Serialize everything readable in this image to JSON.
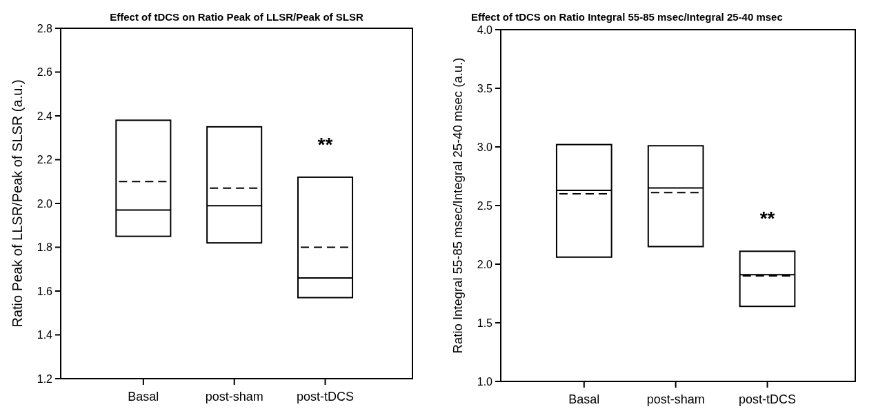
{
  "chart_data": [
    {
      "type": "box",
      "title": "Effect of tDCS on Ratio Peak of LLSR/Peak of SLSR",
      "ylabel": "Ratio Peak of LLSR/Peak of SLSR (a.u.)",
      "categories": [
        "Basal",
        "post-sham",
        "post-tDCS"
      ],
      "ylim": [
        1.2,
        2.8
      ],
      "yticks": [
        1.2,
        1.4,
        1.6,
        1.8,
        {
          "value": 2,
          "label": "2.0"
        },
        2.2,
        2.4,
        2.6,
        2.8
      ],
      "boxes": [
        {
          "low": 1.85,
          "q1": 1.85,
          "median": 1.97,
          "q3": 2.38,
          "high": 2.38,
          "mean": 2.1
        },
        {
          "low": 1.82,
          "q1": 1.82,
          "median": 1.99,
          "q3": 2.35,
          "high": 2.35,
          "mean": 2.07
        },
        {
          "low": 1.57,
          "q1": 1.57,
          "median": 1.66,
          "q3": 2.12,
          "high": 2.12,
          "mean": 1.8
        }
      ],
      "annotations": [
        "**"
      ]
    },
    {
      "type": "box",
      "title": "Effect of tDCS on Ratio Integral 55-85 msec/Integral 25-40 msec",
      "ylabel": "Ratio Integral 55-85 msec/Integral 25-40 msec (a.u.)",
      "categories": [
        "Basal",
        "post-sham",
        "post-tDCS"
      ],
      "ylim": [
        1.0,
        4.0
      ],
      "yticks": [
        {
          "value": 1,
          "label": "1.0"
        },
        1.5,
        {
          "value": 2,
          "label": "2.0"
        },
        2.5,
        {
          "value": 3,
          "label": "3.0"
        },
        3.5,
        {
          "value": 4,
          "label": "4.0"
        }
      ],
      "boxes": [
        {
          "low": 2.06,
          "q1": 2.06,
          "median": 2.63,
          "q3": 3.02,
          "high": 3.02,
          "mean": 2.6
        },
        {
          "low": 2.15,
          "q1": 2.15,
          "median": 2.65,
          "q3": 3.01,
          "high": 3.01,
          "mean": 2.61
        },
        {
          "low": 1.64,
          "q1": 1.64,
          "median": 1.91,
          "q3": 2.11,
          "high": 2.11,
          "mean": 1.9
        }
      ],
      "annotations": [
        "**"
      ]
    }
  ]
}
